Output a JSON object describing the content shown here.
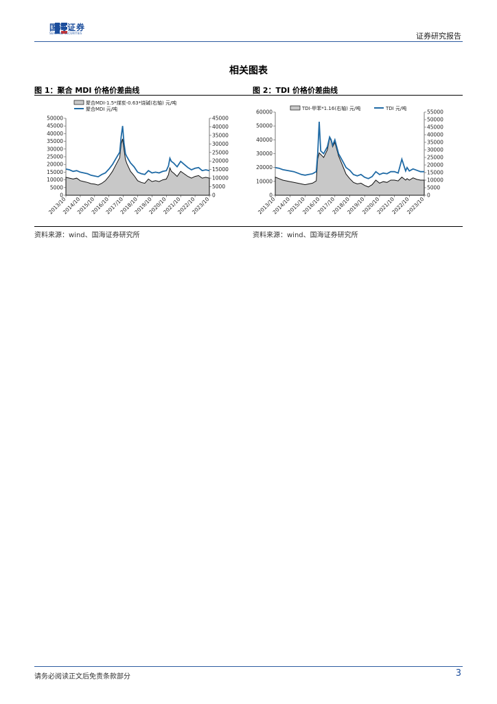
{
  "header": {
    "logo_cn": "国海证券",
    "logo_en": "SEALAND SECURITIES",
    "report_type": "证券研究报告"
  },
  "section_title": "相关图表",
  "figures": [
    {
      "title": "图 1：聚合 MDI 价格价差曲线",
      "source": "资料来源：wind、国海证券研究所"
    },
    {
      "title": "图 2：TDI 价格价差曲线",
      "source": "资料来源：wind、国海证券研究所"
    }
  ],
  "footer": {
    "disclaimer": "请务必阅读正文后免责条款部分",
    "page_number": "3"
  },
  "chart_data": [
    {
      "type": "area",
      "legend": [
        "聚合MDI-1.5*煤炭-0.63*烧碱(右轴) 元/吨",
        "聚合MDI 元/吨"
      ],
      "left_axis_ticks": [
        "0",
        "5000",
        "10000",
        "15000",
        "20000",
        "25000",
        "30000",
        "35000",
        "40000",
        "45000",
        "50000"
      ],
      "right_axis_ticks": [
        "0",
        "5000",
        "10000",
        "15000",
        "20000",
        "25000",
        "30000",
        "35000",
        "40000",
        "45000"
      ],
      "x_ticks": [
        "2013/10",
        "2014/10",
        "2015/10",
        "2016/10",
        "2017/10",
        "2018/10",
        "2019/10",
        "2020/10",
        "2021/10",
        "2022/10",
        "2023/10"
      ],
      "ylim_left": [
        0,
        50000
      ],
      "ylim_right": [
        0,
        45000
      ],
      "x": [
        2013.75,
        2014.0,
        2014.25,
        2014.5,
        2014.75,
        2015.0,
        2015.25,
        2015.5,
        2015.75,
        2016.0,
        2016.25,
        2016.5,
        2016.75,
        2017.0,
        2017.25,
        2017.5,
        2017.6,
        2017.7,
        2017.8,
        2017.9,
        2018.0,
        2018.25,
        2018.5,
        2018.75,
        2019.0,
        2019.25,
        2019.5,
        2019.75,
        2020.0,
        2020.25,
        2020.5,
        2020.75,
        2020.9,
        2021.0,
        2021.1,
        2021.25,
        2021.5,
        2021.75,
        2022.0,
        2022.25,
        2022.5,
        2022.75,
        2023.0,
        2023.25,
        2023.5,
        2023.75
      ],
      "series": [
        {
          "name": "聚合MDI 元/吨",
          "axis": "left",
          "values": [
            17000,
            16500,
            15500,
            16000,
            15000,
            14500,
            14000,
            13000,
            12500,
            12000,
            13500,
            14500,
            17000,
            20000,
            24000,
            28000,
            38000,
            45000,
            34000,
            27000,
            25000,
            21000,
            18500,
            15000,
            14000,
            13500,
            16000,
            14500,
            15000,
            14500,
            15500,
            16000,
            19000,
            24000,
            22000,
            21000,
            18500,
            22000,
            20000,
            18000,
            16500,
            17500,
            18000,
            16000,
            16500,
            16000
          ]
        },
        {
          "name": "聚合MDI-1.5*煤炭-0.63*烧碱(右轴) 元/吨",
          "axis": "right",
          "values": [
            10500,
            10000,
            9500,
            10000,
            8500,
            8000,
            7500,
            6800,
            6500,
            6000,
            7000,
            8500,
            11000,
            14000,
            18000,
            22000,
            30000,
            33000,
            27000,
            21000,
            18500,
            14000,
            11500,
            8500,
            7500,
            7000,
            9500,
            8000,
            8500,
            8000,
            9000,
            9500,
            12000,
            16000,
            14000,
            13000,
            11000,
            14000,
            12500,
            11000,
            10000,
            11000,
            11500,
            10000,
            10500,
            10000
          ]
        }
      ]
    },
    {
      "type": "area",
      "legend": [
        "TDI-甲苯*1.16(右轴) 元/吨",
        "TDI 元/吨"
      ],
      "left_axis_ticks": [
        "0",
        "10000",
        "20000",
        "30000",
        "40000",
        "50000",
        "60000"
      ],
      "right_axis_ticks": [
        "0",
        "5000",
        "10000",
        "15000",
        "20000",
        "25000",
        "30000",
        "35000",
        "40000",
        "45000",
        "50000",
        "55000"
      ],
      "x_ticks": [
        "2013/10",
        "2014/10",
        "2015/10",
        "2016/10",
        "2017/10",
        "2018/10",
        "2019/10",
        "2020/10",
        "2021/10",
        "2022/10",
        "2023/10"
      ],
      "ylim_left": [
        0,
        60000
      ],
      "ylim_right": [
        0,
        55000
      ],
      "x": [
        2013.75,
        2014.0,
        2014.25,
        2014.5,
        2014.75,
        2015.0,
        2015.25,
        2015.5,
        2015.75,
        2016.0,
        2016.25,
        2016.5,
        2016.6,
        2016.7,
        2016.8,
        2016.9,
        2017.0,
        2017.25,
        2017.4,
        2017.5,
        2017.6,
        2017.75,
        2018.0,
        2018.25,
        2018.5,
        2018.75,
        2019.0,
        2019.25,
        2019.5,
        2019.75,
        2020.0,
        2020.25,
        2020.5,
        2020.75,
        2021.0,
        2021.25,
        2021.5,
        2021.75,
        2022.0,
        2022.25,
        2022.5,
        2022.6,
        2022.75,
        2023.0,
        2023.25,
        2023.5,
        2023.75
      ],
      "series": [
        {
          "name": "TDI 元/吨",
          "axis": "left",
          "values": [
            20000,
            19500,
            18500,
            18000,
            17500,
            17000,
            16000,
            15000,
            14500,
            15000,
            15500,
            17000,
            30000,
            53000,
            32000,
            31000,
            30000,
            35000,
            42000,
            40000,
            36000,
            40000,
            30000,
            25000,
            20000,
            18000,
            15000,
            14000,
            15000,
            13000,
            12000,
            13500,
            17000,
            15000,
            16000,
            15500,
            17000,
            17000,
            16000,
            26000,
            17500,
            20000,
            17500,
            19000,
            18000,
            17000,
            17000
          ]
        },
        {
          "name": "TDI-甲苯*1.16(右轴) 元/吨",
          "axis": "right",
          "values": [
            12000,
            11000,
            10000,
            9500,
            9000,
            8500,
            8000,
            7500,
            7000,
            7500,
            8000,
            9500,
            24000,
            28000,
            27000,
            26000,
            25000,
            30000,
            38000,
            36000,
            32000,
            35000,
            26000,
            20000,
            14000,
            11000,
            8500,
            7500,
            8000,
            6500,
            5500,
            7000,
            10000,
            8000,
            9000,
            8500,
            10000,
            10000,
            9500,
            12000,
            10000,
            11000,
            10000,
            11500,
            10500,
            10000,
            10000
          ]
        }
      ]
    }
  ]
}
